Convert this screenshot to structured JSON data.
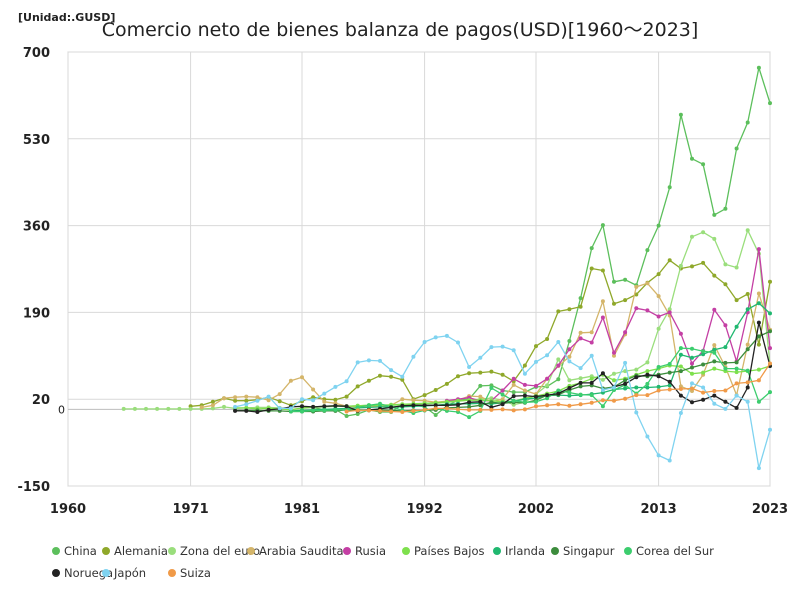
{
  "unit_label": "[Unidad:.GUSD]",
  "title": "Comercio neto de bienes balanza de pagos(USD)[1960～2023]",
  "chart_data": {
    "type": "line",
    "title": "Comercio neto de bienes balanza de pagos(USD)[1960～2023]",
    "unit": "[Unidad:.GUSD]",
    "xlim": [
      1960,
      2023
    ],
    "ylim": [
      -150,
      700
    ],
    "x_ticks": [
      "1960",
      "1971",
      "1981",
      "1992",
      "2002",
      "2013",
      "2023"
    ],
    "x_tick_values": [
      1960,
      1971,
      1981,
      1992,
      2002,
      2013,
      2023
    ],
    "y_ticks": [
      "-150",
      "20",
      "190",
      "360",
      "530",
      "700"
    ],
    "y_tick_values": [
      -150,
      20,
      190,
      360,
      530,
      700
    ],
    "zero_label": "0",
    "grid": true,
    "legend_position": "bottom",
    "series": [
      {
        "name": "China",
        "color": "#5cbf5c",
        "x": [
          1982,
          1983,
          1984,
          1985,
          1986,
          1987,
          1988,
          1989,
          1990,
          1991,
          1992,
          1993,
          1994,
          1995,
          1996,
          1997,
          1998,
          1999,
          2000,
          2001,
          2002,
          2003,
          2004,
          2005,
          2006,
          2007,
          2008,
          2009,
          2010,
          2011,
          2012,
          2013,
          2014,
          2015,
          2016,
          2017,
          2018,
          2019,
          2020,
          2021,
          2022,
          2023
        ],
        "y": [
          4,
          -1,
          0,
          -13,
          -9,
          -1,
          -5,
          -5,
          9,
          9,
          5,
          -11,
          7,
          18,
          20,
          46,
          47,
          37,
          34,
          34,
          44,
          45,
          59,
          134,
          218,
          316,
          361,
          250,
          254,
          243,
          312,
          360,
          435,
          577,
          491,
          480,
          381,
          393,
          511,
          562,
          669,
          600
        ]
      },
      {
        "name": "Alemania",
        "color": "#8fa82a",
        "x": [
          1971,
          1972,
          1973,
          1974,
          1975,
          1976,
          1977,
          1978,
          1979,
          1980,
          1981,
          1982,
          1983,
          1984,
          1985,
          1986,
          1987,
          1988,
          1989,
          1990,
          1991,
          1992,
          1993,
          1994,
          1995,
          1996,
          1997,
          1998,
          1999,
          2000,
          2001,
          2002,
          2003,
          2004,
          2005,
          2006,
          2007,
          2008,
          2009,
          2010,
          2011,
          2012,
          2013,
          2014,
          2015,
          2016,
          2017,
          2018,
          2019,
          2020,
          2021,
          2022,
          2023
        ],
        "y": [
          6,
          8,
          15,
          22,
          17,
          17,
          19,
          24,
          16,
          8,
          16,
          24,
          20,
          19,
          25,
          45,
          56,
          66,
          64,
          58,
          20,
          28,
          38,
          50,
          65,
          71,
          72,
          74,
          68,
          55,
          86,
          124,
          138,
          192,
          196,
          201,
          276,
          272,
          207,
          214,
          225,
          248,
          265,
          292,
          276,
          280,
          287,
          262,
          245,
          214,
          226,
          127,
          250
        ]
      },
      {
        "name": "Zona del euro",
        "color": "#9ade7c",
        "x": [
          1965,
          1966,
          1967,
          1968,
          1969,
          1970,
          1971,
          1972,
          1973,
          1974,
          1975,
          1976,
          1977,
          1978,
          1979,
          1980,
          1981,
          1982,
          1983,
          1984,
          1985,
          1986,
          1987,
          1988,
          1989,
          1990,
          1991,
          1992,
          1993,
          1994,
          1995,
          1996,
          1997,
          1998,
          1999,
          2000,
          2001,
          2002,
          2003,
          2004,
          2005,
          2006,
          2007,
          2008,
          2009,
          2010,
          2011,
          2012,
          2013,
          2014,
          2015,
          2016,
          2017,
          2018,
          2019,
          2020,
          2021,
          2022,
          2023
        ],
        "y": [
          1,
          1,
          1,
          1,
          1,
          1,
          1,
          1,
          2,
          5,
          2,
          3,
          4,
          4,
          3,
          0,
          2,
          4,
          5,
          6,
          6,
          7,
          8,
          9,
          8,
          9,
          10,
          11,
          12,
          14,
          16,
          18,
          20,
          22,
          18,
          9,
          14,
          30,
          47,
          98,
          57,
          61,
          65,
          58,
          70,
          75,
          78,
          92,
          158,
          196,
          281,
          338,
          347,
          334,
          284,
          278,
          351,
          305,
          87
        ]
      },
      {
        "name": "Arabia Saudita",
        "color": "#d4b56a",
        "x": [
          1972,
          1973,
          1974,
          1975,
          1976,
          1977,
          1978,
          1979,
          1980,
          1981,
          1982,
          1983,
          1984,
          1985,
          1986,
          1987,
          1988,
          1989,
          1990,
          1991,
          1992,
          1993,
          1994,
          1995,
          1996,
          1997,
          1998,
          1999,
          2000,
          2001,
          2002,
          2003,
          2004,
          2005,
          2006,
          2007,
          2008,
          2009,
          2010,
          2011,
          2012,
          2013,
          2014,
          2015,
          2016,
          2017,
          2018,
          2019,
          2020,
          2021,
          2022,
          2023
        ],
        "y": [
          4,
          8,
          22,
          24,
          25,
          24,
          18,
          30,
          56,
          63,
          39,
          15,
          12,
          6,
          5,
          6,
          6,
          8,
          20,
          18,
          17,
          14,
          16,
          18,
          26,
          25,
          15,
          20,
          48,
          37,
          30,
          60,
          85,
          103,
          150,
          151,
          212,
          105,
          147,
          240,
          247,
          222,
          184,
          45,
          36,
          68,
          126,
          83,
          28,
          127,
          227,
          156
        ]
      },
      {
        "name": "Rusia",
        "color": "#c43fa4",
        "x": [
          1994,
          1995,
          1996,
          1997,
          1998,
          1999,
          2000,
          2001,
          2002,
          2003,
          2004,
          2005,
          2006,
          2007,
          2008,
          2009,
          2010,
          2011,
          2012,
          2013,
          2014,
          2015,
          2016,
          2017,
          2018,
          2019,
          2020,
          2021,
          2022,
          2023
        ],
        "y": [
          17,
          20,
          23,
          17,
          17,
          37,
          60,
          48,
          46,
          60,
          86,
          118,
          139,
          131,
          180,
          111,
          151,
          198,
          194,
          182,
          190,
          148,
          90,
          115,
          195,
          165,
          94,
          190,
          314,
          120
        ]
      },
      {
        "name": "Países Bajos",
        "color": "#7ee04d",
        "x": [
          1975,
          1976,
          1977,
          1978,
          1979,
          1980,
          1981,
          1982,
          1983,
          1984,
          1985,
          1986,
          1987,
          1988,
          1989,
          1990,
          1991,
          1992,
          1993,
          1994,
          1995,
          1996,
          1997,
          1998,
          1999,
          2000,
          2001,
          2002,
          2003,
          2004,
          2005,
          2006,
          2007,
          2008,
          2009,
          2010,
          2011,
          2012,
          2013,
          2014,
          2015,
          2016,
          2017,
          2018,
          2019,
          2020,
          2021,
          2022,
          2023
        ],
        "y": [
          3,
          3,
          1,
          2,
          1,
          -1,
          3,
          5,
          6,
          7,
          6,
          7,
          8,
          8,
          9,
          10,
          11,
          12,
          13,
          15,
          17,
          18,
          18,
          17,
          15,
          16,
          22,
          26,
          31,
          36,
          46,
          52,
          60,
          68,
          57,
          60,
          68,
          75,
          80,
          86,
          84,
          70,
          72,
          80,
          75,
          73,
          75,
          78,
          85
        ]
      },
      {
        "name": "Irlanda",
        "color": "#20b870",
        "x": [
          1980,
          1981,
          1982,
          1983,
          1984,
          1985,
          1986,
          1987,
          1988,
          1989,
          1990,
          1991,
          1992,
          1993,
          1994,
          1995,
          1996,
          1997,
          1998,
          1999,
          2000,
          2001,
          2002,
          2003,
          2004,
          2005,
          2006,
          2007,
          2008,
          2009,
          2010,
          2011,
          2012,
          2013,
          2014,
          2015,
          2016,
          2017,
          2018,
          2019,
          2020,
          2021,
          2022,
          2023
        ],
        "y": [
          -3,
          -2,
          -1,
          0,
          1,
          2,
          3,
          4,
          5,
          5,
          5,
          6,
          7,
          8,
          10,
          11,
          11,
          12,
          11,
          13,
          16,
          20,
          22,
          27,
          28,
          27,
          28,
          30,
          33,
          39,
          41,
          43,
          43,
          44,
          47,
          107,
          101,
          108,
          117,
          122,
          162,
          196,
          208,
          188
        ]
      },
      {
        "name": "Singapur",
        "color": "#3c8c3c",
        "x": [
          1975,
          1976,
          1977,
          1978,
          1979,
          1980,
          1981,
          1982,
          1983,
          1984,
          1985,
          1986,
          1987,
          1988,
          1989,
          1990,
          1991,
          1992,
          1993,
          1994,
          1995,
          1996,
          1997,
          1998,
          1999,
          2000,
          2001,
          2002,
          2003,
          2004,
          2005,
          2006,
          2007,
          2008,
          2009,
          2010,
          2011,
          2012,
          2013,
          2014,
          2015,
          2016,
          2017,
          2018,
          2019,
          2020,
          2021,
          2022,
          2023
        ],
        "y": [
          -2,
          -2,
          -2,
          -3,
          -3,
          -4,
          -4,
          -4,
          -3,
          -3,
          -1,
          -1,
          -2,
          -1,
          -2,
          -3,
          -2,
          -2,
          -1,
          3,
          4,
          5,
          8,
          14,
          12,
          14,
          13,
          18,
          28,
          29,
          38,
          45,
          47,
          41,
          44,
          57,
          66,
          65,
          68,
          72,
          75,
          82,
          88,
          94,
          91,
          92,
          118,
          143,
          153
        ]
      },
      {
        "name": "Corea del Sur",
        "color": "#3ccd6e",
        "x": [
          1980,
          1981,
          1982,
          1983,
          1984,
          1985,
          1986,
          1987,
          1988,
          1989,
          1990,
          1991,
          1992,
          1993,
          1994,
          1995,
          1996,
          1997,
          1998,
          1999,
          2000,
          2001,
          2002,
          2003,
          2004,
          2005,
          2006,
          2007,
          2008,
          2009,
          2010,
          2011,
          2012,
          2013,
          2014,
          2015,
          2016,
          2017,
          2018,
          2019,
          2020,
          2021,
          2022,
          2023
        ],
        "y": [
          -4,
          -4,
          -2,
          -2,
          -1,
          -1,
          4,
          8,
          11,
          5,
          -2,
          -7,
          -2,
          2,
          -3,
          -5,
          -15,
          -3,
          42,
          29,
          17,
          14,
          15,
          22,
          37,
          33,
          29,
          28,
          6,
          38,
          48,
          31,
          50,
          83,
          89,
          120,
          119,
          114,
          111,
          80,
          80,
          76,
          15,
          34
        ]
      },
      {
        "name": "Noruega",
        "color": "#222222",
        "x": [
          1975,
          1976,
          1977,
          1978,
          1979,
          1980,
          1981,
          1982,
          1983,
          1984,
          1985,
          1986,
          1987,
          1988,
          1989,
          1990,
          1991,
          1992,
          1993,
          1994,
          1995,
          1996,
          1997,
          1998,
          1999,
          2000,
          2001,
          2002,
          2003,
          2004,
          2005,
          2006,
          2007,
          2008,
          2009,
          2010,
          2011,
          2012,
          2013,
          2014,
          2015,
          2016,
          2017,
          2018,
          2019,
          2020,
          2021,
          2022,
          2023
        ],
        "y": [
          -3,
          -3,
          -5,
          -1,
          1,
          5,
          6,
          5,
          6,
          7,
          6,
          -3,
          -1,
          1,
          4,
          7,
          8,
          8,
          8,
          8,
          9,
          14,
          15,
          4,
          10,
          26,
          27,
          25,
          28,
          31,
          42,
          52,
          52,
          71,
          44,
          50,
          63,
          68,
          65,
          54,
          27,
          14,
          19,
          27,
          15,
          3,
          43,
          170,
          85
        ]
      },
      {
        "name": "Japón",
        "color": "#7fd3f0",
        "x": [
          1975,
          1976,
          1977,
          1978,
          1979,
          1980,
          1981,
          1982,
          1983,
          1984,
          1985,
          1986,
          1987,
          1988,
          1989,
          1990,
          1991,
          1992,
          1993,
          1994,
          1995,
          1996,
          1997,
          1998,
          1999,
          2000,
          2001,
          2002,
          2003,
          2004,
          2005,
          2006,
          2007,
          2008,
          2009,
          2010,
          2011,
          2012,
          2013,
          2014,
          2015,
          2016,
          2017,
          2018,
          2019,
          2020,
          2021,
          2022,
          2023
        ],
        "y": [
          5,
          10,
          17,
          25,
          2,
          2,
          20,
          18,
          31,
          44,
          55,
          92,
          96,
          95,
          77,
          64,
          103,
          132,
          141,
          144,
          131,
          83,
          101,
          122,
          123,
          116,
          70,
          93,
          106,
          132,
          94,
          81,
          105,
          38,
          43,
          91,
          -6,
          -53,
          -90,
          -100,
          -7,
          51,
          43,
          11,
          1,
          27,
          15,
          -115,
          -40
        ]
      },
      {
        "name": "Suiza",
        "color": "#f09a48",
        "x": [
          1985,
          1986,
          1987,
          1988,
          1989,
          1990,
          1991,
          1992,
          1993,
          1994,
          1995,
          1996,
          1997,
          1998,
          1999,
          2000,
          2001,
          2002,
          2003,
          2004,
          2005,
          2006,
          2007,
          2008,
          2009,
          2010,
          2011,
          2012,
          2013,
          2014,
          2015,
          2016,
          2017,
          2018,
          2019,
          2020,
          2021,
          2022,
          2023
        ],
        "y": [
          -4,
          -2,
          -2,
          -3,
          -4,
          -5,
          -3,
          -1,
          2,
          2,
          0,
          -1,
          -1,
          -1,
          0,
          -2,
          0,
          6,
          8,
          10,
          7,
          10,
          13,
          18,
          17,
          21,
          28,
          28,
          37,
          39,
          40,
          41,
          33,
          36,
          37,
          51,
          53,
          57,
          90
        ]
      }
    ]
  }
}
